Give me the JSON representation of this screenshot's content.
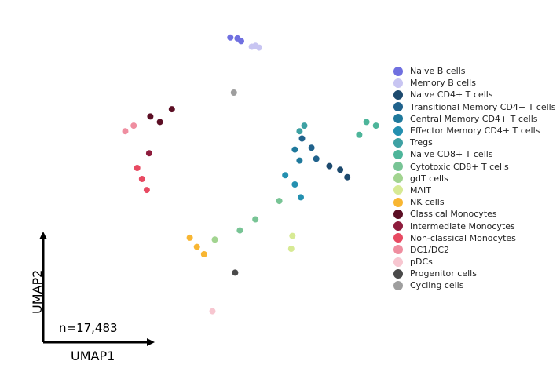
{
  "chart_data": {
    "type": "scatter",
    "title": "",
    "xlabel": "UMAP1",
    "ylabel": "UMAP2",
    "annotation": "n=17,483",
    "grid": false,
    "legend_position": "right",
    "series": [
      {
        "name": "Naive B cells",
        "color": "#7070e0",
        "points": [
          [
            12.3,
            8.7
          ],
          [
            11.4,
            8.9
          ],
          [
            12.0,
            8.85
          ]
        ]
      },
      {
        "name": "Memory B cells",
        "color": "#c8c5f2",
        "points": [
          [
            13.2,
            8.4
          ],
          [
            13.8,
            8.35
          ],
          [
            13.5,
            8.45
          ]
        ]
      },
      {
        "name": "Naive CD4+ T cells",
        "color": "#1d4a6e",
        "points": [
          [
            20.6,
            1.7
          ],
          [
            19.7,
            1.9
          ],
          [
            21.2,
            1.3
          ]
        ]
      },
      {
        "name": "Transitional Memory CD4+ T cells",
        "color": "#20628c",
        "points": [
          [
            18.2,
            2.9
          ],
          [
            17.4,
            3.4
          ],
          [
            18.6,
            2.3
          ]
        ]
      },
      {
        "name": "Central Memory CD4+ T cells",
        "color": "#1f799c",
        "points": [
          [
            17.2,
            2.2
          ],
          [
            16.8,
            2.8
          ]
        ]
      },
      {
        "name": "Effector Memory CD4+ T cells",
        "color": "#2490b0",
        "points": [
          [
            16.8,
            0.9
          ],
          [
            16.0,
            1.4
          ],
          [
            17.3,
            0.2
          ]
        ]
      },
      {
        "name": "Tregs",
        "color": "#3ea1a3",
        "points": [
          [
            17.6,
            4.1
          ],
          [
            17.2,
            3.8
          ]
        ]
      },
      {
        "name": "Naive CD8+ T cells",
        "color": "#4db59a",
        "points": [
          [
            22.8,
            4.3
          ],
          [
            23.6,
            4.1
          ],
          [
            22.2,
            3.6
          ]
        ]
      },
      {
        "name": "Cytotoxic CD8+ T cells",
        "color": "#78c495",
        "points": [
          [
            13.5,
            -1.0
          ],
          [
            15.5,
            0.0
          ],
          [
            12.2,
            -1.6
          ]
        ]
      },
      {
        "name": "gdT cells",
        "color": "#a2d490",
        "points": [
          [
            10.1,
            -2.1
          ]
        ]
      },
      {
        "name": "MAIT",
        "color": "#d7ea94",
        "points": [
          [
            16.5,
            -2.6
          ],
          [
            16.6,
            -1.9
          ]
        ]
      },
      {
        "name": "NK cells",
        "color": "#f8b632",
        "points": [
          [
            8.6,
            -2.5
          ],
          [
            8.0,
            -2.0
          ],
          [
            9.2,
            -2.9
          ]
        ]
      },
      {
        "name": "Classical Monocytes",
        "color": "#5b0e24",
        "points": [
          [
            5.5,
            4.3
          ],
          [
            4.7,
            4.6
          ],
          [
            6.5,
            5.0
          ]
        ]
      },
      {
        "name": "Intermediate Monocytes",
        "color": "#8e1c3c",
        "points": [
          [
            4.6,
            2.6
          ]
        ]
      },
      {
        "name": "Non-classical Monocytes",
        "color": "#e84a62",
        "points": [
          [
            4.0,
            1.2
          ],
          [
            4.4,
            0.6
          ],
          [
            3.6,
            1.8
          ]
        ]
      },
      {
        "name": "DC1/DC2",
        "color": "#ef8ea0",
        "points": [
          [
            2.6,
            3.8
          ],
          [
            3.3,
            4.1
          ]
        ]
      },
      {
        "name": "pDCs",
        "color": "#f7c6d0",
        "points": [
          [
            9.9,
            -6.0
          ]
        ]
      },
      {
        "name": "Progenitor cells",
        "color": "#4a4a4a",
        "points": [
          [
            11.8,
            -3.9
          ]
        ]
      },
      {
        "name": "Cycling cells",
        "color": "#9e9e9e",
        "points": [
          [
            11.7,
            5.9
          ]
        ]
      }
    ]
  }
}
